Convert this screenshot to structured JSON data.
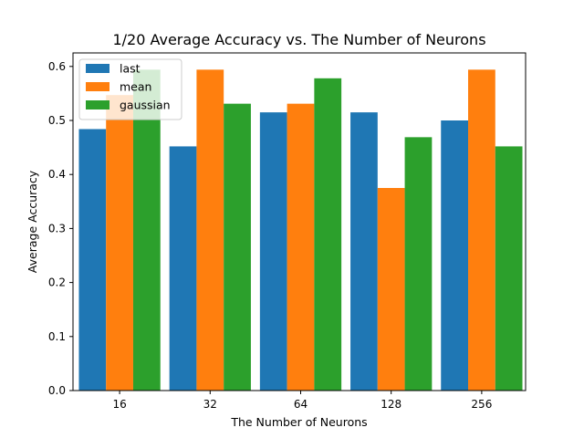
{
  "chart_data": {
    "type": "bar",
    "title": "1/20 Average Accuracy vs. The Number of Neurons",
    "xlabel": "The Number of Neurons",
    "ylabel": "Average Accuracy",
    "categories": [
      "16",
      "32",
      "64",
      "128",
      "256"
    ],
    "series": [
      {
        "name": "last",
        "color": "#1f77b4",
        "values": [
          0.484,
          0.452,
          0.515,
          0.515,
          0.5
        ]
      },
      {
        "name": "mean",
        "color": "#ff7f0e",
        "values": [
          0.547,
          0.594,
          0.531,
          0.375,
          0.594
        ]
      },
      {
        "name": "gaussian",
        "color": "#2ca02c",
        "values": [
          0.594,
          0.531,
          0.578,
          0.469,
          0.452
        ]
      }
    ],
    "ylim": [
      0,
      0.625
    ],
    "yticks": [
      "0.0",
      "0.1",
      "0.2",
      "0.3",
      "0.4",
      "0.5",
      "0.6"
    ],
    "grid": false,
    "legend_position": "top-left"
  }
}
